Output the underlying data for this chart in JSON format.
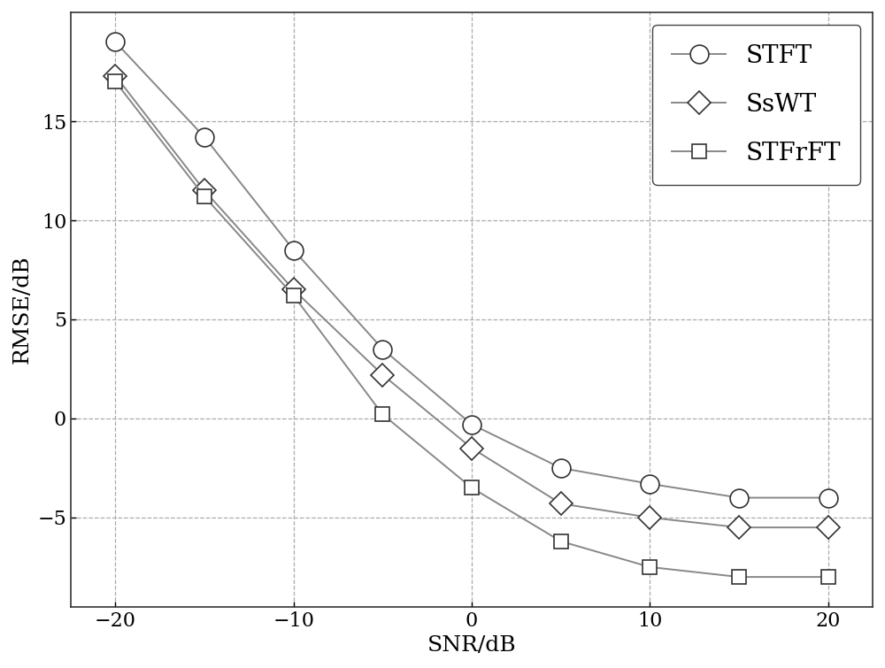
{
  "snr": [
    -20,
    -15,
    -10,
    -5,
    0,
    5,
    10,
    15,
    20
  ],
  "stft": [
    19.0,
    14.2,
    8.5,
    3.5,
    -0.3,
    -2.5,
    -3.3,
    -4.0,
    -4.0
  ],
  "sswt": [
    17.3,
    11.5,
    6.5,
    2.2,
    -1.5,
    -4.3,
    -5.0,
    -5.5,
    -5.5
  ],
  "stfrft": [
    17.0,
    11.2,
    6.2,
    0.2,
    -3.5,
    -6.2,
    -7.5,
    -8.0,
    -8.0
  ],
  "line_color": "#888888",
  "marker_edge_color": "#333333",
  "background_color": "#ffffff",
  "grid_color": "#aaaaaa",
  "xlabel": "SNR/dB",
  "ylabel": "RMSE/dB",
  "legend_labels": [
    "STFT",
    "SsWT",
    "STFrFT"
  ],
  "xlim": [
    -22.5,
    22.5
  ],
  "ylim": [
    -9.5,
    20.5
  ],
  "xticks": [
    -20,
    -10,
    0,
    10,
    20
  ],
  "yticks": [
    -5,
    0,
    5,
    10,
    15
  ],
  "axis_fontsize": 18,
  "tick_fontsize": 16,
  "legend_fontsize": 20,
  "linewidth": 1.4,
  "markersize_circle": 15,
  "markersize_diamond": 13,
  "markersize_square": 12
}
